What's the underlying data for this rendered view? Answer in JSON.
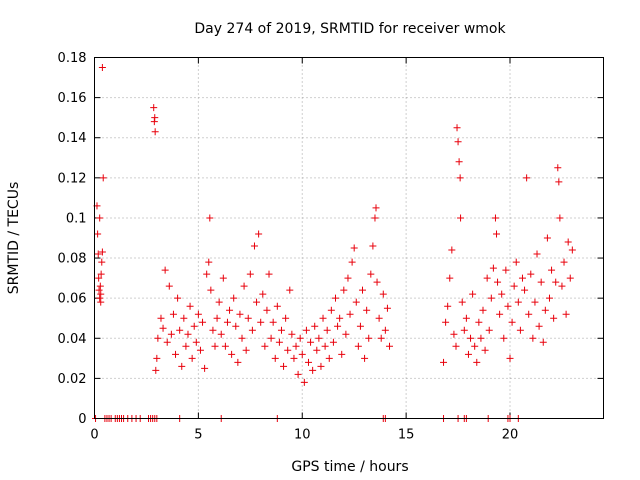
{
  "chart_data": {
    "type": "scatter",
    "title": "Day 274 of 2019, SRMTID for receiver wmok",
    "xlabel": "GPS time / hours",
    "ylabel": "SRMTID / TECUs",
    "xlim": [
      0,
      24.5
    ],
    "ylim": [
      0,
      0.18
    ],
    "xticks": [
      0,
      5,
      10,
      15,
      20
    ],
    "yticks": [
      0,
      0.02,
      0.04,
      0.06,
      0.08,
      0.1,
      0.12,
      0.14,
      0.16,
      0.18
    ],
    "ytick_labels": [
      "0",
      "0.02",
      "0.04",
      "0.06",
      "0.08",
      "0.1",
      "0.12",
      "0.14",
      "0.16",
      "0.18"
    ],
    "grid": true,
    "marker": "+",
    "color": "#e8000b",
    "series": [
      {
        "name": "SRMTID",
        "points": [
          [
            0.12,
            0.106
          ],
          [
            0.15,
            0.092
          ],
          [
            0.18,
            0.082
          ],
          [
            0.2,
            0.07
          ],
          [
            0.22,
            0.064
          ],
          [
            0.25,
            0.06
          ],
          [
            0.28,
            0.066
          ],
          [
            0.3,
            0.058
          ],
          [
            0.32,
            0.072
          ],
          [
            0.35,
            0.078
          ],
          [
            0.38,
            0.175
          ],
          [
            0.42,
            0.12
          ],
          [
            0.25,
            0.1
          ],
          [
            0.3,
            0.062
          ],
          [
            0.38,
            0.083
          ],
          [
            2.85,
            0.155
          ],
          [
            2.88,
            0.148
          ],
          [
            2.9,
            0.15
          ],
          [
            2.92,
            0.143
          ],
          [
            2.95,
            0.024
          ],
          [
            3.0,
            0.03
          ],
          [
            3.05,
            0.04
          ],
          [
            3.2,
            0.05
          ],
          [
            3.3,
            0.045
          ],
          [
            3.4,
            0.074
          ],
          [
            3.5,
            0.038
          ],
          [
            3.6,
            0.066
          ],
          [
            3.7,
            0.042
          ],
          [
            3.8,
            0.052
          ],
          [
            3.9,
            0.032
          ],
          [
            4.0,
            0.06
          ],
          [
            4.1,
            0.044
          ],
          [
            4.2,
            0.026
          ],
          [
            4.3,
            0.05
          ],
          [
            4.4,
            0.036
          ],
          [
            4.5,
            0.042
          ],
          [
            4.6,
            0.056
          ],
          [
            4.7,
            0.03
          ],
          [
            4.8,
            0.046
          ],
          [
            4.9,
            0.038
          ],
          [
            5.0,
            0.052
          ],
          [
            5.1,
            0.034
          ],
          [
            5.2,
            0.048
          ],
          [
            5.3,
            0.025
          ],
          [
            5.4,
            0.072
          ],
          [
            5.5,
            0.078
          ],
          [
            5.55,
            0.1
          ],
          [
            5.6,
            0.064
          ],
          [
            5.7,
            0.044
          ],
          [
            5.8,
            0.036
          ],
          [
            5.9,
            0.05
          ],
          [
            6.0,
            0.058
          ],
          [
            6.1,
            0.042
          ],
          [
            6.2,
            0.07
          ],
          [
            6.3,
            0.036
          ],
          [
            6.4,
            0.048
          ],
          [
            6.5,
            0.054
          ],
          [
            6.6,
            0.032
          ],
          [
            6.7,
            0.06
          ],
          [
            6.8,
            0.046
          ],
          [
            6.9,
            0.028
          ],
          [
            7.0,
            0.052
          ],
          [
            7.1,
            0.04
          ],
          [
            7.2,
            0.066
          ],
          [
            7.3,
            0.034
          ],
          [
            7.4,
            0.05
          ],
          [
            7.5,
            0.072
          ],
          [
            7.6,
            0.044
          ],
          [
            7.7,
            0.086
          ],
          [
            7.8,
            0.058
          ],
          [
            7.9,
            0.092
          ],
          [
            8.0,
            0.048
          ],
          [
            8.1,
            0.062
          ],
          [
            8.2,
            0.036
          ],
          [
            8.3,
            0.054
          ],
          [
            8.4,
            0.072
          ],
          [
            8.5,
            0.04
          ],
          [
            8.6,
            0.048
          ],
          [
            8.7,
            0.03
          ],
          [
            8.8,
            0.056
          ],
          [
            8.9,
            0.038
          ],
          [
            9.0,
            0.044
          ],
          [
            9.1,
            0.026
          ],
          [
            9.2,
            0.05
          ],
          [
            9.3,
            0.034
          ],
          [
            9.4,
            0.064
          ],
          [
            9.5,
            0.042
          ],
          [
            9.6,
            0.03
          ],
          [
            9.7,
            0.036
          ],
          [
            9.8,
            0.022
          ],
          [
            9.9,
            0.04
          ],
          [
            10.0,
            0.032
          ],
          [
            10.1,
            0.018
          ],
          [
            10.2,
            0.044
          ],
          [
            10.3,
            0.028
          ],
          [
            10.4,
            0.038
          ],
          [
            10.5,
            0.024
          ],
          [
            10.6,
            0.046
          ],
          [
            10.7,
            0.034
          ],
          [
            10.8,
            0.04
          ],
          [
            10.9,
            0.026
          ],
          [
            11.0,
            0.05
          ],
          [
            11.1,
            0.036
          ],
          [
            11.2,
            0.044
          ],
          [
            11.3,
            0.03
          ],
          [
            11.4,
            0.054
          ],
          [
            11.5,
            0.038
          ],
          [
            11.6,
            0.06
          ],
          [
            11.7,
            0.046
          ],
          [
            11.8,
            0.05
          ],
          [
            11.9,
            0.032
          ],
          [
            12.0,
            0.064
          ],
          [
            12.1,
            0.042
          ],
          [
            12.2,
            0.07
          ],
          [
            12.3,
            0.052
          ],
          [
            12.4,
            0.078
          ],
          [
            12.5,
            0.085
          ],
          [
            12.6,
            0.058
          ],
          [
            12.7,
            0.036
          ],
          [
            12.8,
            0.046
          ],
          [
            12.9,
            0.064
          ],
          [
            13.0,
            0.03
          ],
          [
            13.1,
            0.054
          ],
          [
            13.2,
            0.04
          ],
          [
            13.3,
            0.072
          ],
          [
            13.4,
            0.086
          ],
          [
            13.5,
            0.1
          ],
          [
            13.55,
            0.105
          ],
          [
            13.6,
            0.068
          ],
          [
            13.7,
            0.05
          ],
          [
            13.8,
            0.04
          ],
          [
            13.9,
            0.062
          ],
          [
            14.0,
            0.044
          ],
          [
            14.1,
            0.055
          ],
          [
            14.2,
            0.036
          ],
          [
            16.8,
            0.028
          ],
          [
            16.9,
            0.048
          ],
          [
            17.0,
            0.056
          ],
          [
            17.1,
            0.07
          ],
          [
            17.2,
            0.084
          ],
          [
            17.3,
            0.042
          ],
          [
            17.4,
            0.036
          ],
          [
            17.45,
            0.145
          ],
          [
            17.5,
            0.138
          ],
          [
            17.55,
            0.128
          ],
          [
            17.6,
            0.12
          ],
          [
            17.62,
            0.1
          ],
          [
            17.7,
            0.058
          ],
          [
            17.8,
            0.044
          ],
          [
            17.9,
            0.05
          ],
          [
            18.0,
            0.032
          ],
          [
            18.1,
            0.04
          ],
          [
            18.2,
            0.062
          ],
          [
            18.3,
            0.036
          ],
          [
            18.4,
            0.028
          ],
          [
            18.5,
            0.048
          ],
          [
            18.6,
            0.04
          ],
          [
            18.7,
            0.054
          ],
          [
            18.8,
            0.034
          ],
          [
            18.9,
            0.07
          ],
          [
            19.0,
            0.044
          ],
          [
            19.1,
            0.06
          ],
          [
            19.2,
            0.075
          ],
          [
            19.3,
            0.1
          ],
          [
            19.35,
            0.092
          ],
          [
            19.4,
            0.068
          ],
          [
            19.5,
            0.052
          ],
          [
            19.6,
            0.062
          ],
          [
            19.7,
            0.04
          ],
          [
            19.8,
            0.074
          ],
          [
            19.9,
            0.056
          ],
          [
            20.0,
            0.03
          ],
          [
            20.1,
            0.048
          ],
          [
            20.2,
            0.066
          ],
          [
            20.3,
            0.078
          ],
          [
            20.4,
            0.058
          ],
          [
            20.5,
            0.044
          ],
          [
            20.6,
            0.07
          ],
          [
            20.7,
            0.064
          ],
          [
            20.8,
            0.12
          ],
          [
            20.9,
            0.052
          ],
          [
            21.0,
            0.072
          ],
          [
            21.1,
            0.04
          ],
          [
            21.2,
            0.058
          ],
          [
            21.3,
            0.082
          ],
          [
            21.4,
            0.046
          ],
          [
            21.5,
            0.068
          ],
          [
            21.6,
            0.038
          ],
          [
            21.7,
            0.054
          ],
          [
            21.8,
            0.09
          ],
          [
            21.9,
            0.06
          ],
          [
            22.0,
            0.074
          ],
          [
            22.1,
            0.05
          ],
          [
            22.2,
            0.068
          ],
          [
            22.3,
            0.125
          ],
          [
            22.35,
            0.118
          ],
          [
            22.4,
            0.1
          ],
          [
            22.5,
            0.066
          ],
          [
            22.6,
            0.078
          ],
          [
            22.7,
            0.052
          ],
          [
            22.8,
            0.088
          ],
          [
            22.9,
            0.07
          ],
          [
            23.0,
            0.084
          ],
          [
            0.05,
            0
          ],
          [
            0.5,
            0
          ],
          [
            0.6,
            0
          ],
          [
            0.7,
            0
          ],
          [
            0.8,
            0
          ],
          [
            1.0,
            0
          ],
          [
            1.1,
            0
          ],
          [
            1.2,
            0
          ],
          [
            1.3,
            0
          ],
          [
            1.4,
            0
          ],
          [
            1.6,
            0
          ],
          [
            1.8,
            0
          ],
          [
            2.0,
            0
          ],
          [
            2.2,
            0
          ],
          [
            2.6,
            0
          ],
          [
            2.7,
            0
          ],
          [
            2.8,
            0
          ],
          [
            2.9,
            0
          ],
          [
            3.0,
            0
          ],
          [
            4.1,
            0
          ],
          [
            6.1,
            0
          ],
          [
            8.8,
            0
          ],
          [
            13.9,
            0
          ],
          [
            14.0,
            0
          ],
          [
            16.8,
            0
          ],
          [
            17.5,
            0
          ],
          [
            17.8,
            0
          ],
          [
            17.9,
            0
          ],
          [
            18.95,
            0
          ],
          [
            19.9,
            0
          ],
          [
            20.0,
            0
          ],
          [
            20.4,
            0
          ]
        ]
      }
    ]
  }
}
